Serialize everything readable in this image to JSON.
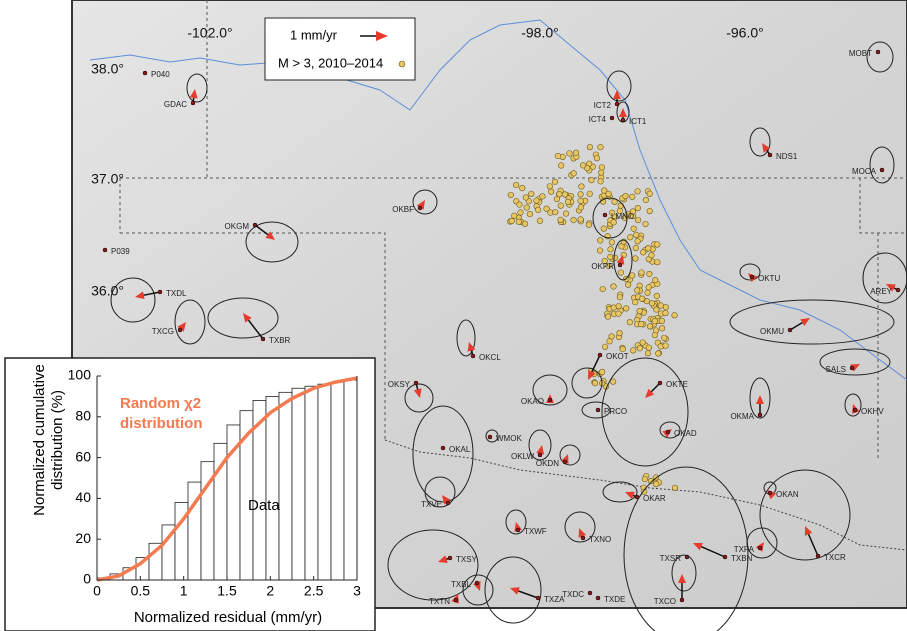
{
  "map": {
    "lon_labels": [
      "-102.0°",
      "-98.0°",
      "-96.0°"
    ],
    "lat_labels": [
      "38.0°",
      "37.0°",
      "36.0°"
    ],
    "legend": {
      "vector": "1 mm/yr",
      "quakes": "M > 3, 2010–2014"
    },
    "stations": [
      "P040",
      "GDAC",
      "ICT2",
      "ICT4",
      "ICT1",
      "NDS1",
      "MOBT",
      "MOCA",
      "OKBF",
      "LMNO",
      "OKGM",
      "P039",
      "TXDL",
      "TXCG",
      "TXBR",
      "OKPR",
      "OKTU",
      "AREY",
      "OKMU",
      "SALS",
      "OKCL",
      "OKOT",
      "OKSY",
      "OKAO",
      "OKTE",
      "PRCO",
      "OKMA",
      "OKHV",
      "OKAD",
      "OKAL",
      "WMOK",
      "OKLW",
      "OKDN",
      "OKAR",
      "OKAN",
      "TXCR",
      "TXVE",
      "TXWF",
      "TXNO",
      "TXSR",
      "TXBN",
      "TXPA",
      "TXSY",
      "TXBL",
      "TXTN",
      "TXZA",
      "TXDC",
      "TXDE",
      "TXCO"
    ]
  },
  "chart_data": {
    "type": "histogram",
    "xlabel": "Normalized residual (mm/yr)",
    "ylabel": [
      "Normalized cumulative",
      "distribution (%)"
    ],
    "annotations": [
      "Random χ2",
      "distribution",
      "Data"
    ],
    "bins": [
      0,
      0.15,
      0.3,
      0.45,
      0.6,
      0.75,
      0.9,
      1.05,
      1.2,
      1.35,
      1.5,
      1.65,
      1.8,
      1.95,
      2.1,
      2.25,
      2.4,
      2.55,
      2.7,
      2.85,
      3.0
    ],
    "values": [
      1,
      3,
      6,
      11,
      18,
      27,
      38,
      48,
      58,
      67,
      76,
      83,
      88,
      90,
      92,
      94,
      95,
      96,
      97,
      98
    ],
    "color": "#ffffff",
    "curve": {
      "color": "#f47a50",
      "x": [
        0,
        0.25,
        0.5,
        0.75,
        1,
        1.25,
        1.5,
        1.75,
        2,
        2.25,
        2.5,
        2.75,
        3
      ],
      "values": [
        0,
        2,
        8,
        17,
        30,
        45,
        60,
        72,
        82,
        89,
        94,
        97,
        99
      ]
    },
    "xlim": [
      0,
      3
    ],
    "ylim": [
      0,
      100
    ],
    "xticks": [
      0,
      0.5,
      1,
      1.5,
      2,
      2.5,
      3
    ],
    "yticks": [
      0,
      20,
      40,
      60,
      80,
      100
    ]
  }
}
